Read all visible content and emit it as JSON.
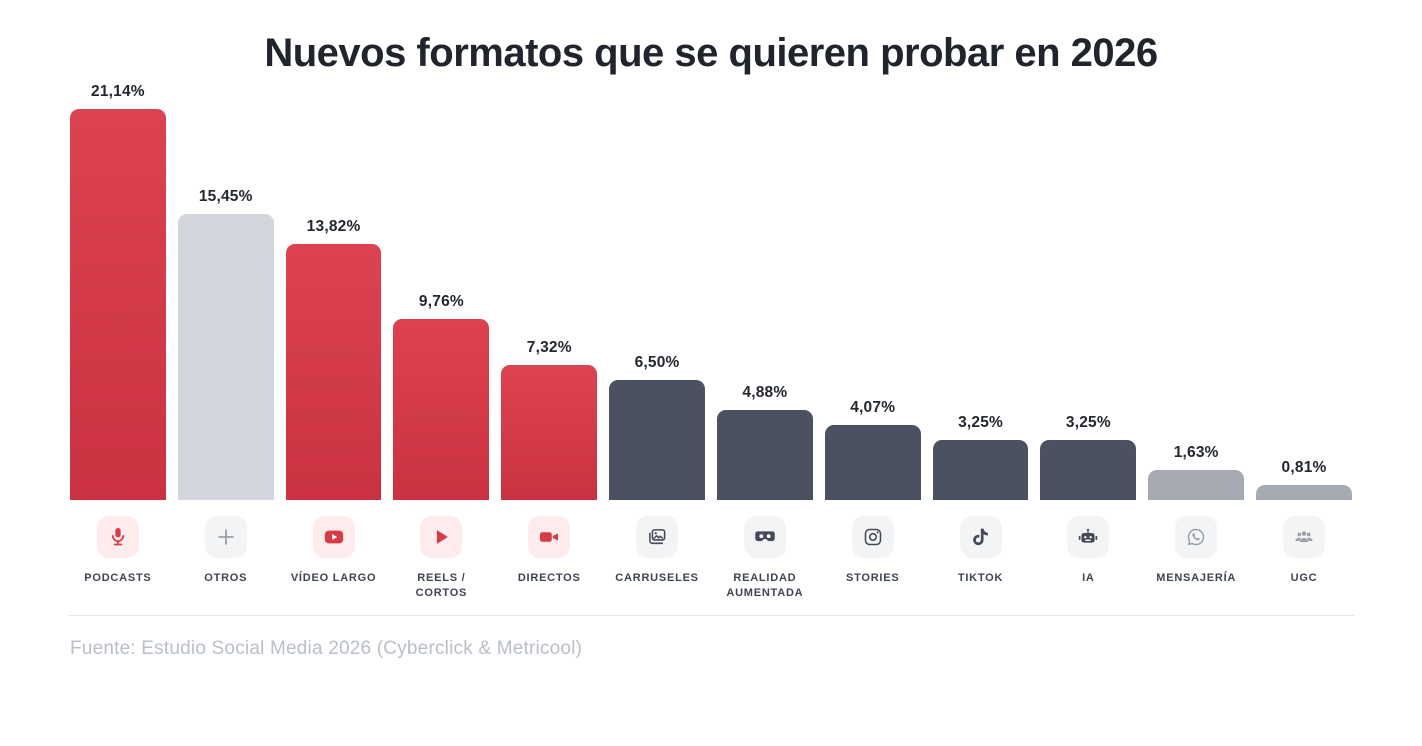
{
  "title": "Nuevos formatos que se quieren probar en 2026",
  "footer": {
    "source": "Fuente: Estudio Social Media 2026 (Cyberclick & Metricool)"
  },
  "colors": {
    "red": "#d63b47",
    "light_gray": "#d3d6dc",
    "dark_slate": "#4b5160",
    "mid_gray": "#a6aab3",
    "icon_bg_red": "#fdeceb",
    "icon_bg_gray": "#f3f4f6",
    "title_color": "#20242d",
    "value_color": "#23272f",
    "category_color": "#3e4450",
    "footer_color": "#b9bfc8",
    "divider_color": "#e4e6ea"
  },
  "chart_data": {
    "type": "bar",
    "title": "Nuevos formatos que se quieren probar en 2026",
    "categories": [
      "PODCASTS",
      "OTROS",
      "VÍDEO LARGO",
      "REELS / CORTOS",
      "DIRECTOS",
      "CARRUSELES",
      "REALIDAD AUMENTADA",
      "STORIES",
      "TIKTOK",
      "IA",
      "MENSAJERÍA",
      "UGC"
    ],
    "values": [
      21.14,
      15.45,
      13.82,
      9.76,
      7.32,
      6.5,
      4.88,
      4.07,
      3.25,
      3.25,
      1.63,
      0.81
    ],
    "value_labels": [
      "21,14%",
      "15,45%",
      "13,82%",
      "9,76%",
      "7,32%",
      "6,50%",
      "4,88%",
      "4,07%",
      "3,25%",
      "3,25%",
      "1,63%",
      "0,81%"
    ],
    "bar_styles": [
      "red",
      "light",
      "red",
      "red",
      "red",
      "dark",
      "dark",
      "dark",
      "dark",
      "dark",
      "mid",
      "mid"
    ],
    "icons": [
      "microphone-icon",
      "plus-icon",
      "youtube-icon",
      "play-icon",
      "video-camera-icon",
      "carousel-icon",
      "vr-goggles-icon",
      "instagram-icon",
      "tiktok-icon",
      "robot-icon",
      "whatsapp-icon",
      "users-icon"
    ],
    "icon_styles": [
      "red",
      "gray",
      "red",
      "red",
      "red",
      "dark",
      "dark",
      "dark",
      "dark",
      "dark",
      "gray",
      "gray"
    ],
    "xlabel": "",
    "ylabel": "",
    "ylim": [
      0,
      22
    ],
    "grid": false,
    "legend": null,
    "source": "Fuente: Estudio Social Media 2026 (Cyberclick & Metricool)"
  }
}
